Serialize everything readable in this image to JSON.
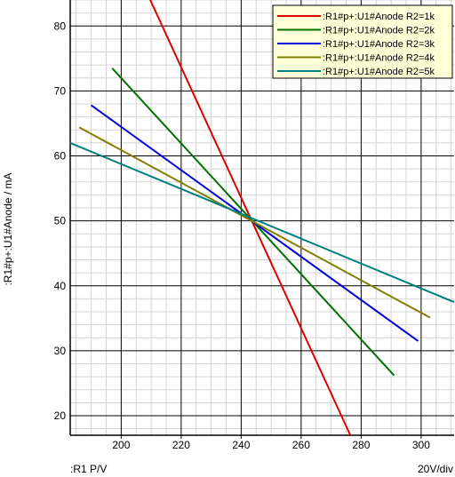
{
  "chart_data": {
    "type": "line",
    "xlabel": ":R1  P/V",
    "ylabel": ":R1#p+:U1#Anode / mA",
    "x_scale_note": "20V/div",
    "xlim": [
      183,
      311
    ],
    "ylim": [
      17,
      84
    ],
    "x_ticks": [
      200,
      220,
      240,
      260,
      280,
      300
    ],
    "y_ticks": [
      20,
      30,
      40,
      50,
      60,
      70,
      80
    ],
    "x_tick_labels": [
      "200",
      "220",
      "240",
      "260",
      "280",
      "300"
    ],
    "y_tick_labels": [
      "20",
      "30",
      "40",
      "50",
      "60",
      "70",
      "80"
    ],
    "grid": true,
    "legend_position": "top-right",
    "series": [
      {
        "name": ":R1#p+:U1#Anode R2=1k",
        "color": "#e00000",
        "points": [
          [
            209.5,
            84.2
          ],
          [
            276.5,
            16.9
          ]
        ]
      },
      {
        "name": ":R1#p+:U1#Anode R2=2k",
        "color": "#007000",
        "points": [
          [
            197,
            73.5
          ],
          [
            291,
            26.2
          ]
        ]
      },
      {
        "name": ":R1#p+:U1#Anode R2=3k",
        "color": "#0000e0",
        "points": [
          [
            190,
            67.8
          ],
          [
            299,
            31.5
          ]
        ]
      },
      {
        "name": ":R1#p+:U1#Anode R2=4k",
        "color": "#808000",
        "points": [
          [
            186,
            64.4
          ],
          [
            303,
            35.1
          ]
        ]
      },
      {
        "name": ":R1#p+:U1#Anode R2=5k",
        "color": "#008080",
        "points": [
          [
            183,
            62.0
          ],
          [
            311,
            37.5
          ]
        ]
      }
    ]
  }
}
